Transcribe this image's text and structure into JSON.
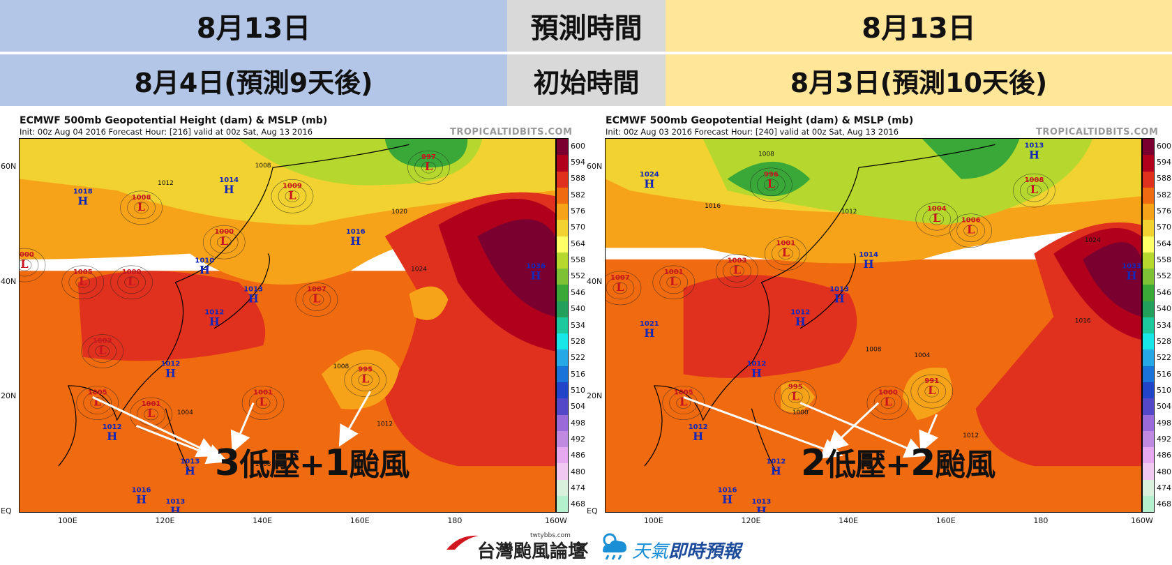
{
  "header": {
    "left_valid": "8月13日",
    "left_init": "8月4日(預測9天後)",
    "mid_valid_label": "預測時間",
    "mid_init_label": "初始時間",
    "right_valid": "8月13日",
    "right_init": "8月3日(預測10天後)"
  },
  "maps": [
    {
      "title": "ECMWF 500mb Geopotential Height (dam) & MSLP (mb)",
      "subtitle": "Init: 00z Aug 04 2016   Forecast Hour: [216]   valid at 00z Sat, Aug 13 2016",
      "credit": "TROPICALTIDBITS.COM",
      "annotation": {
        "n1": "3",
        "t1": "低壓+",
        "n2": "1",
        "t2": "颱風"
      },
      "highs": [
        {
          "label": "1018",
          "lon": 103,
          "lat": 54
        },
        {
          "label": "1014",
          "lon": 133,
          "lat": 56
        },
        {
          "label": "1016",
          "lon": 159,
          "lat": 47
        },
        {
          "label": "1010",
          "lon": 128,
          "lat": 42
        },
        {
          "label": "1013",
          "lon": 138,
          "lat": 37
        },
        {
          "label": "1012",
          "lon": 130,
          "lat": 33
        },
        {
          "label": "1012",
          "lon": 121,
          "lat": 24
        },
        {
          "label": "1012",
          "lon": 109,
          "lat": 13
        },
        {
          "label": "1013",
          "lon": 125,
          "lat": 7
        },
        {
          "label": "1016",
          "lon": 115,
          "lat": 2
        },
        {
          "label": "1013",
          "lon": 122,
          "lat": 0
        },
        {
          "label": "1036",
          "lon": 196,
          "lat": 41
        }
      ],
      "lows": [
        {
          "label": "1008",
          "lon": 115,
          "lat": 53
        },
        {
          "label": "1009",
          "lon": 146,
          "lat": 55
        },
        {
          "label": "997",
          "lon": 174,
          "lat": 60
        },
        {
          "label": "1000",
          "lon": 132,
          "lat": 47
        },
        {
          "label": "1000",
          "lon": 91,
          "lat": 43
        },
        {
          "label": "1005",
          "lon": 103,
          "lat": 40
        },
        {
          "label": "1000",
          "lon": 113,
          "lat": 40
        },
        {
          "label": "1007",
          "lon": 151,
          "lat": 37
        },
        {
          "label": "1003",
          "lon": 107,
          "lat": 28
        },
        {
          "label": "995",
          "lon": 161,
          "lat": 23
        },
        {
          "label": "1001",
          "lon": 140,
          "lat": 19
        },
        {
          "label": "1001",
          "lon": 117,
          "lat": 17
        },
        {
          "label": "1005",
          "lon": 106,
          "lat": 19
        }
      ],
      "contour_labels": [
        {
          "label": "1008",
          "lon": 140,
          "lat": 60
        },
        {
          "label": "1012",
          "lon": 120,
          "lat": 57
        },
        {
          "label": "1020",
          "lon": 168,
          "lat": 52
        },
        {
          "label": "1024",
          "lon": 172,
          "lat": 42
        },
        {
          "label": "1008",
          "lon": 156,
          "lat": 25
        },
        {
          "label": "1004",
          "lon": 124,
          "lat": 17
        },
        {
          "label": "1012",
          "lon": 165,
          "lat": 15
        },
        {
          "label": "1008",
          "lon": 140,
          "lat": 8
        }
      ]
    },
    {
      "title": "ECMWF 500mb Geopotential Height (dam) & MSLP (mb)",
      "subtitle": "Init: 00z Aug 03 2016   Forecast Hour: [240]   valid at 00z Sat, Aug 13 2016",
      "credit": "TROPICALTIDBITS.COM",
      "annotation": {
        "n1": "2",
        "t1": "低壓+",
        "n2": "2",
        "t2": "颱風"
      },
      "highs": [
        {
          "label": "1024",
          "lon": 99,
          "lat": 57
        },
        {
          "label": "1013",
          "lon": 178,
          "lat": 62
        },
        {
          "label": "1014",
          "lon": 144,
          "lat": 43
        },
        {
          "label": "1013",
          "lon": 138,
          "lat": 37
        },
        {
          "label": "1012",
          "lon": 130,
          "lat": 33
        },
        {
          "label": "1021",
          "lon": 99,
          "lat": 31
        },
        {
          "label": "1012",
          "lon": 121,
          "lat": 24
        },
        {
          "label": "1012",
          "lon": 109,
          "lat": 13
        },
        {
          "label": "1012",
          "lon": 125,
          "lat": 7
        },
        {
          "label": "1016",
          "lon": 115,
          "lat": 2
        },
        {
          "label": "1013",
          "lon": 122,
          "lat": 0
        },
        {
          "label": "1033",
          "lon": 198,
          "lat": 41
        }
      ],
      "lows": [
        {
          "label": "996",
          "lon": 124,
          "lat": 57
        },
        {
          "label": "1004",
          "lon": 158,
          "lat": 51
        },
        {
          "label": "1008",
          "lon": 178,
          "lat": 56
        },
        {
          "label": "1006",
          "lon": 165,
          "lat": 49
        },
        {
          "label": "1001",
          "lon": 127,
          "lat": 45
        },
        {
          "label": "1003",
          "lon": 117,
          "lat": 42
        },
        {
          "label": "1001",
          "lon": 104,
          "lat": 40
        },
        {
          "label": "1007",
          "lon": 93,
          "lat": 39
        },
        {
          "label": "995",
          "lon": 129,
          "lat": 20
        },
        {
          "label": "1000",
          "lon": 148,
          "lat": 19
        },
        {
          "label": "991",
          "lon": 157,
          "lat": 21
        },
        {
          "label": "1005",
          "lon": 106,
          "lat": 19
        }
      ],
      "contour_labels": [
        {
          "label": "1008",
          "lon": 123,
          "lat": 62
        },
        {
          "label": "1016",
          "lon": 112,
          "lat": 53
        },
        {
          "label": "1012",
          "lon": 140,
          "lat": 52
        },
        {
          "label": "1024",
          "lon": 190,
          "lat": 47
        },
        {
          "label": "1016",
          "lon": 188,
          "lat": 33
        },
        {
          "label": "1008",
          "lon": 145,
          "lat": 28
        },
        {
          "label": "1004",
          "lon": 155,
          "lat": 27
        },
        {
          "label": "1000",
          "lon": 130,
          "lat": 17
        },
        {
          "label": "1012",
          "lon": 165,
          "lat": 13
        }
      ]
    }
  ],
  "axes": {
    "y_ticks": [
      {
        "label": "60N",
        "lat": 60
      },
      {
        "label": "40N",
        "lat": 40
      },
      {
        "label": "20N",
        "lat": 20
      },
      {
        "label": "EQ",
        "lat": 0
      }
    ],
    "x_ticks": [
      {
        "label": "100E",
        "lon": 100
      },
      {
        "label": "120E",
        "lon": 120
      },
      {
        "label": "140E",
        "lon": 140
      },
      {
        "label": "160E",
        "lon": 160
      },
      {
        "label": "180",
        "lon": 180
      },
      {
        "label": "160W",
        "lon": 200
      }
    ]
  },
  "colorbar": {
    "labels": [
      "600",
      "594",
      "588",
      "582",
      "576",
      "570",
      "564",
      "558",
      "552",
      "546",
      "540",
      "534",
      "528",
      "522",
      "516",
      "510",
      "504",
      "498",
      "492",
      "486",
      "480",
      "474",
      "468"
    ],
    "colors": [
      "#7a0030",
      "#b0001c",
      "#e0301e",
      "#f06a10",
      "#f7a31a",
      "#f2d230",
      "#ffff66",
      "#b6d82e",
      "#7cc234",
      "#3aa838",
      "#22a05a",
      "#1cc89e",
      "#19e6e6",
      "#26a8e6",
      "#1a73d9",
      "#2244c8",
      "#5248c8",
      "#9a6ad8",
      "#c08ae0",
      "#e6a8ee",
      "#f0c8f0",
      "#d8f0dc",
      "#b4f0cc"
    ]
  },
  "footer": {
    "logo1": "台灣颱風論壇",
    "logo1_url": "twtybbs.com",
    "times": "×",
    "logo2a": "天氣",
    "logo2b": "即時預報"
  }
}
